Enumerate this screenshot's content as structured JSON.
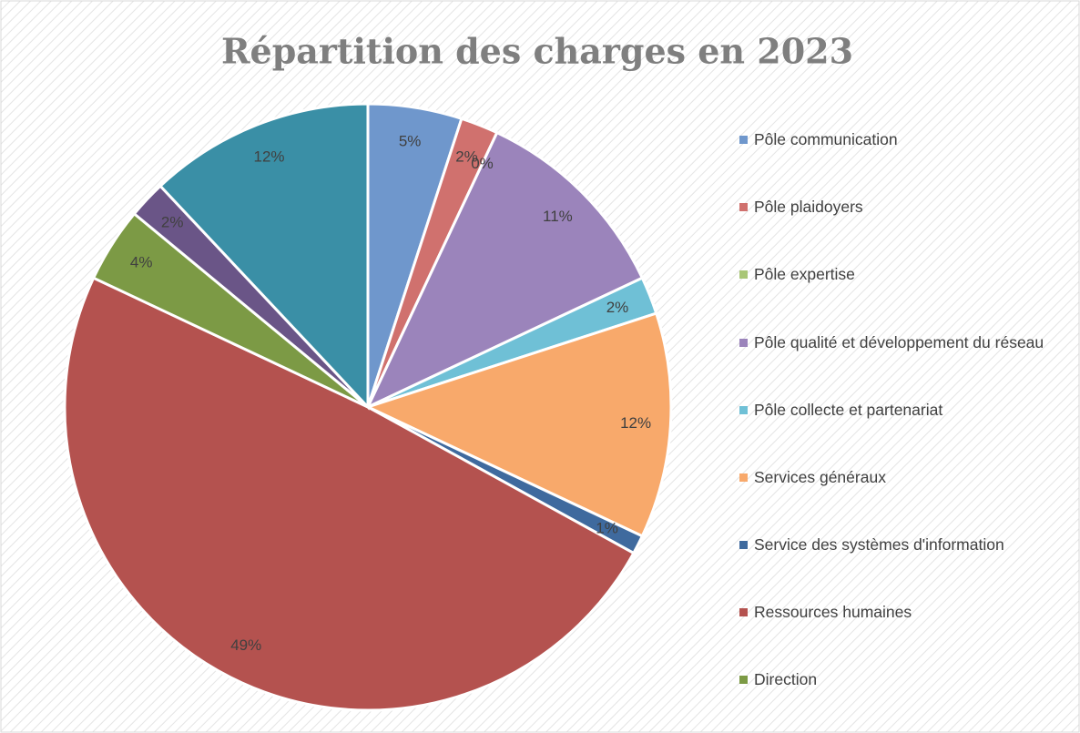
{
  "chart_data": {
    "type": "pie",
    "title": "Répartition des charges en 2023",
    "categories": [
      "Pôle communication",
      "Pôle plaidoyers",
      "Pôle expertise",
      "Pôle qualité et développement du réseau",
      "Pôle collecte et partenariat",
      "Services généraux",
      "Service des systèmes d'information",
      "Ressources humaines",
      "Direction",
      null,
      null
    ],
    "values": [
      5,
      2,
      0,
      11,
      2,
      12,
      1,
      49,
      4,
      2,
      12
    ],
    "value_labels": [
      "5%",
      "2%",
      "0%",
      "11%",
      "2%",
      "12%",
      "1%",
      "49%",
      "4%",
      "2%",
      "12%"
    ],
    "colors": [
      "#6f97cc",
      "#d0716e",
      "#a9c677",
      "#9b84bb",
      "#6fc0d6",
      "#f8a96b",
      "#3f6a9e",
      "#b4524f",
      "#7c9a45",
      "#6a5587",
      "#3a8fa6"
    ],
    "legend": "right"
  }
}
